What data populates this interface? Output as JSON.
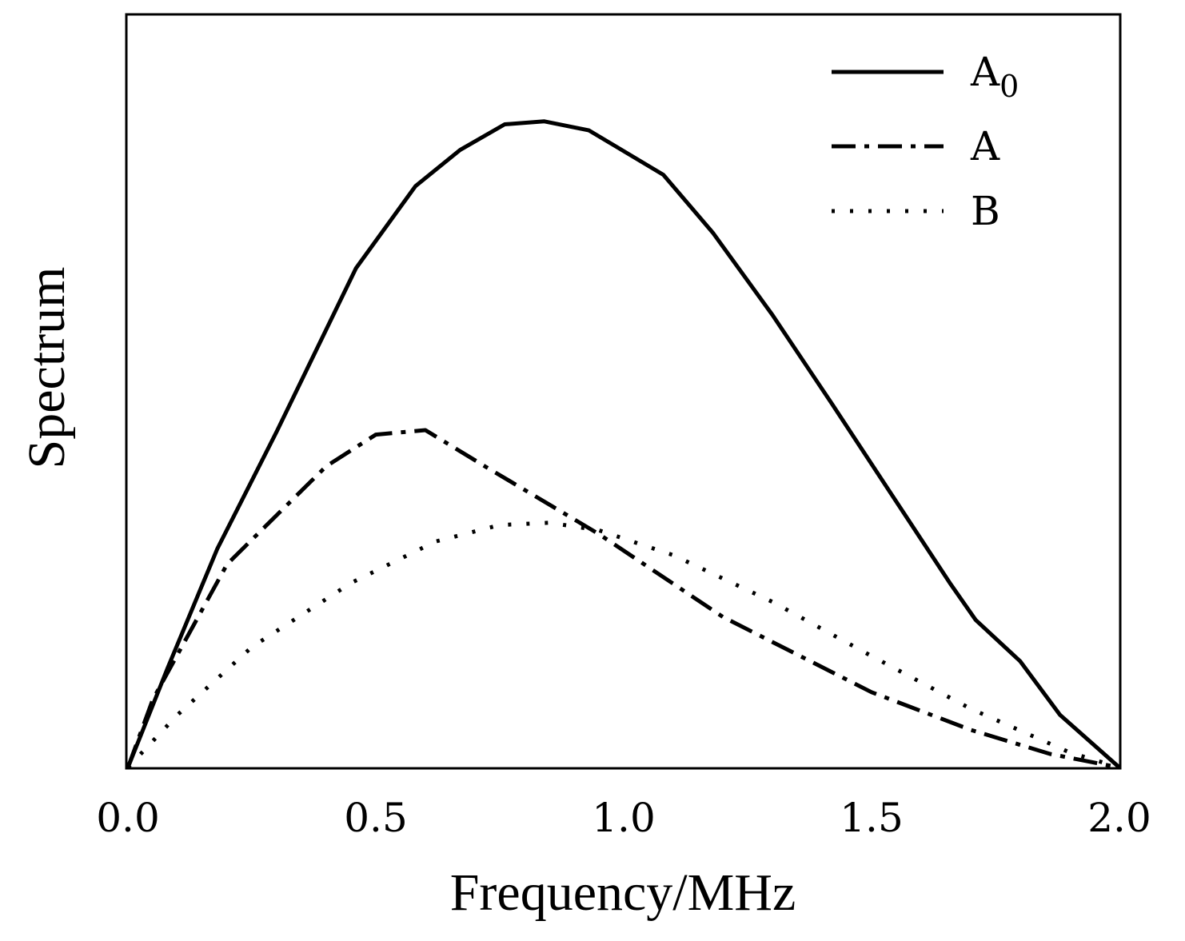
{
  "chart_data": {
    "type": "line",
    "title": "",
    "xlabel": "Frequency/MHz",
    "ylabel": "Spectrum",
    "xlim": [
      0.0,
      2.0
    ],
    "ylim": [
      0.0,
      1.0
    ],
    "xticks": [
      "0.0",
      "0.5",
      "1.0",
      "1.5",
      "2.0"
    ],
    "grid": false,
    "legend_position": "top-right",
    "series": [
      {
        "name": "A",
        "subscript": "0",
        "style": "solid",
        "color": "#000000",
        "x": [
          0.0,
          0.08,
          0.18,
          0.3,
          0.46,
          0.58,
          0.67,
          0.76,
          0.84,
          0.93,
          1.08,
          1.18,
          1.3,
          1.42,
          1.54,
          1.66,
          1.71,
          1.8,
          1.88,
          2.0
        ],
        "y": [
          0.0,
          0.132,
          0.29,
          0.446,
          0.663,
          0.772,
          0.82,
          0.854,
          0.858,
          0.846,
          0.787,
          0.71,
          0.601,
          0.483,
          0.363,
          0.243,
          0.196,
          0.141,
          0.07,
          0.0
        ]
      },
      {
        "name": "A",
        "subscript": "",
        "style": "dash-dot",
        "color": "#000000",
        "x": [
          0.0,
          0.05,
          0.2,
          0.4,
          0.5,
          0.6,
          0.72,
          0.95,
          1.2,
          1.5,
          1.7,
          1.86,
          2.0
        ],
        "y": [
          0.0,
          0.09,
          0.27,
          0.4,
          0.442,
          0.448,
          0.4,
          0.31,
          0.2,
          0.1,
          0.05,
          0.018,
          0.0
        ]
      },
      {
        "name": "B",
        "subscript": "",
        "style": "dotted",
        "color": "#000000",
        "x": [
          0.0,
          0.1,
          0.25,
          0.45,
          0.62,
          0.75,
          0.85,
          0.95,
          1.1,
          1.3,
          1.5,
          1.7,
          1.9,
          2.0
        ],
        "y": [
          0.0,
          0.07,
          0.16,
          0.245,
          0.3,
          0.322,
          0.325,
          0.315,
          0.282,
          0.22,
          0.148,
          0.078,
          0.02,
          0.0
        ]
      }
    ]
  }
}
